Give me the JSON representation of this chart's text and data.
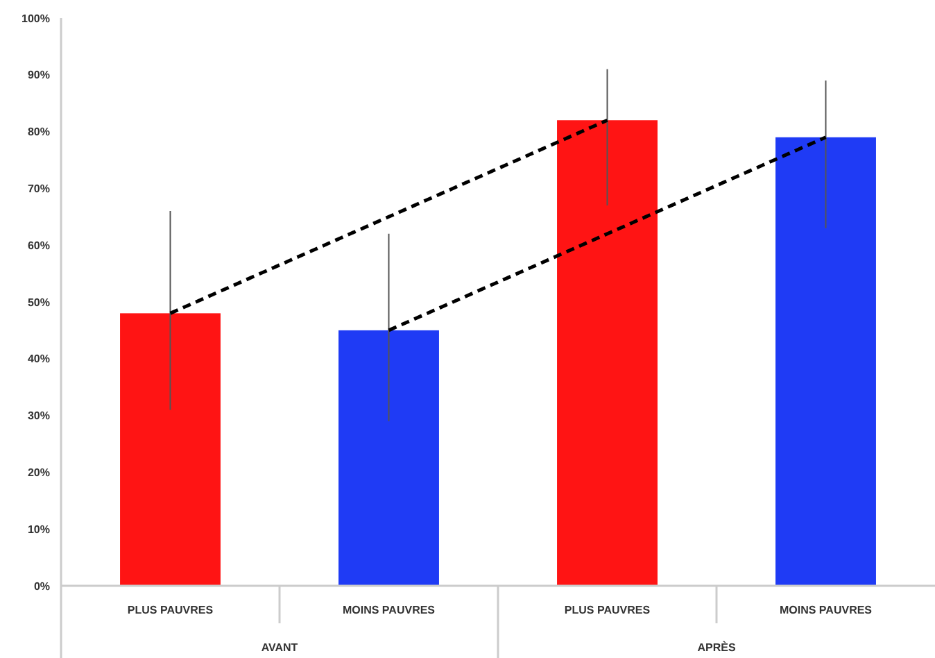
{
  "chart_data": {
    "type": "bar",
    "categories": [
      "PLUS PAUVRES",
      "MOINS PAUVRES",
      "PLUS PAUVRES",
      "MOINS PAUVRES"
    ],
    "series": [
      {
        "values": [
          48,
          45,
          82,
          79
        ],
        "colors": [
          "#ff1414",
          "#1f3bf5",
          "#ff1414",
          "#1f3bf5"
        ],
        "errors": [
          [
            31,
            66
          ],
          [
            29,
            62
          ],
          [
            67,
            91
          ],
          [
            63,
            89
          ]
        ]
      },
      {
        "type": "line",
        "color": "#000000",
        "values": [
          48,
          null,
          82,
          null
        ]
      },
      {
        "type": "line",
        "color": "#000000",
        "values": [
          null,
          45,
          null,
          79
        ]
      }
    ],
    "line_style": "dashed",
    "marker": "none",
    "ylim": [
      0,
      100
    ],
    "yticks": [
      {
        "value": 0,
        "label": "0%"
      },
      {
        "value": 10,
        "label": "10%"
      },
      {
        "value": 20,
        "label": "20%"
      },
      {
        "value": 30,
        "label": "30%"
      },
      {
        "value": 40,
        "label": "40%"
      },
      {
        "value": 50,
        "label": "50%"
      },
      {
        "value": 60,
        "label": "60%"
      },
      {
        "value": 70,
        "label": "70%"
      },
      {
        "value": 80,
        "label": "80%"
      },
      {
        "value": 90,
        "label": "90%"
      },
      {
        "value": 100,
        "label": "100%"
      }
    ],
    "grid": false,
    "annotations": [
      "AVANT",
      "APRÈS"
    ]
  }
}
